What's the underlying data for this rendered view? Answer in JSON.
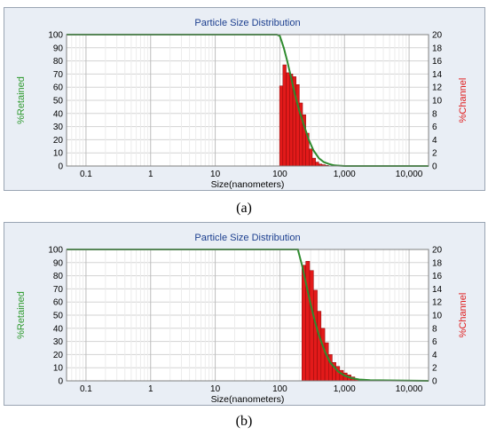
{
  "chart_data": [
    {
      "type": "bar",
      "title": "Particle Size Distribution",
      "xlabel": "Size(nanometers)",
      "ylabel_left": "%Retained",
      "ylabel_right": "%Channel",
      "x_scale": "log",
      "xlim": [
        0.05,
        20000
      ],
      "x_ticks": [
        0.1,
        1,
        10,
        100,
        1000,
        10000
      ],
      "x_tick_labels": [
        "0.1",
        "1",
        "10",
        "100",
        "1,000",
        "10,000"
      ],
      "ylim_left": [
        0,
        100
      ],
      "y_ticks_left": [
        "0",
        "10",
        "20",
        "30",
        "40",
        "50",
        "60",
        "70",
        "80",
        "90",
        "100"
      ],
      "ylim_right": [
        0,
        20
      ],
      "y_ticks_right": [
        "0",
        "2",
        "4",
        "6",
        "8",
        "10",
        "12",
        "14",
        "16",
        "18",
        "20"
      ],
      "grid": true,
      "colors": {
        "bars": "#e31a1a",
        "line": "#2e8b2e",
        "title": "#1c3f8f"
      },
      "bar_centers": [
        105,
        118,
        133,
        150,
        168,
        189,
        212,
        238,
        267,
        300,
        337,
        378,
        424,
        476,
        535,
        600
      ],
      "series": [
        {
          "type": "bar",
          "axis": "right",
          "values": [
            12.2,
            15.4,
            14.2,
            14.0,
            13.6,
            12.4,
            9.6,
            7.8,
            5.0,
            2.6,
            1.2,
            0.6,
            0.3,
            0.2,
            0.1,
            0.0
          ]
        },
        {
          "type": "line",
          "axis": "left",
          "x": [
            0.05,
            90,
            100,
            115,
            130,
            150,
            170,
            200,
            240,
            280,
            330,
            400,
            480,
            580,
            700,
            1000,
            20000
          ],
          "values": [
            100,
            100,
            99,
            90,
            80,
            67,
            55,
            42,
            30,
            20,
            12,
            6,
            3,
            1.5,
            0.5,
            0,
            0
          ]
        }
      ],
      "caption": "(a)"
    },
    {
      "type": "bar",
      "title": "Particle Size Distribution",
      "xlabel": "Size(nanometers)",
      "ylabel_left": "%Retained",
      "ylabel_right": "%Channel",
      "x_scale": "log",
      "xlim": [
        0.05,
        20000
      ],
      "x_ticks": [
        0.1,
        1,
        10,
        100,
        1000,
        10000
      ],
      "x_tick_labels": [
        "0.1",
        "1",
        "10",
        "100",
        "1,000",
        "10,000"
      ],
      "ylim_left": [
        0,
        100
      ],
      "y_ticks_left": [
        "0",
        "10",
        "20",
        "30",
        "40",
        "50",
        "60",
        "70",
        "80",
        "90",
        "100"
      ],
      "ylim_right": [
        0,
        20
      ],
      "y_ticks_right": [
        "0",
        "2",
        "4",
        "6",
        "8",
        "10",
        "12",
        "14",
        "16",
        "18",
        "20"
      ],
      "grid": true,
      "colors": {
        "bars": "#e31a1a",
        "line": "#2e8b2e",
        "title": "#1c3f8f"
      },
      "bar_centers": [
        235,
        270,
        310,
        355,
        405,
        465,
        530,
        605,
        690,
        790,
        900,
        1030,
        1180,
        1350,
        1550,
        1780,
        2050,
        2350,
        2700,
        3100,
        3600,
        4200
      ],
      "series": [
        {
          "type": "bar",
          "axis": "right",
          "values": [
            17.6,
            18.2,
            16.8,
            13.8,
            10.6,
            8.0,
            5.8,
            4.0,
            2.8,
            2.2,
            1.6,
            1.2,
            0.9,
            0.6,
            0.3,
            0.2,
            0.2,
            0.1,
            0.1,
            0.1,
            0.1,
            0.1
          ]
        },
        {
          "type": "line",
          "axis": "left",
          "x": [
            0.05,
            190,
            220,
            260,
            300,
            350,
            400,
            500,
            600,
            800,
            1000,
            1300,
            1700,
            2500,
            20000
          ],
          "values": [
            100,
            100,
            88,
            72,
            58,
            45,
            35,
            22,
            14,
            7,
            4,
            2,
            1,
            0.5,
            0
          ]
        }
      ],
      "caption": "(b)"
    }
  ]
}
